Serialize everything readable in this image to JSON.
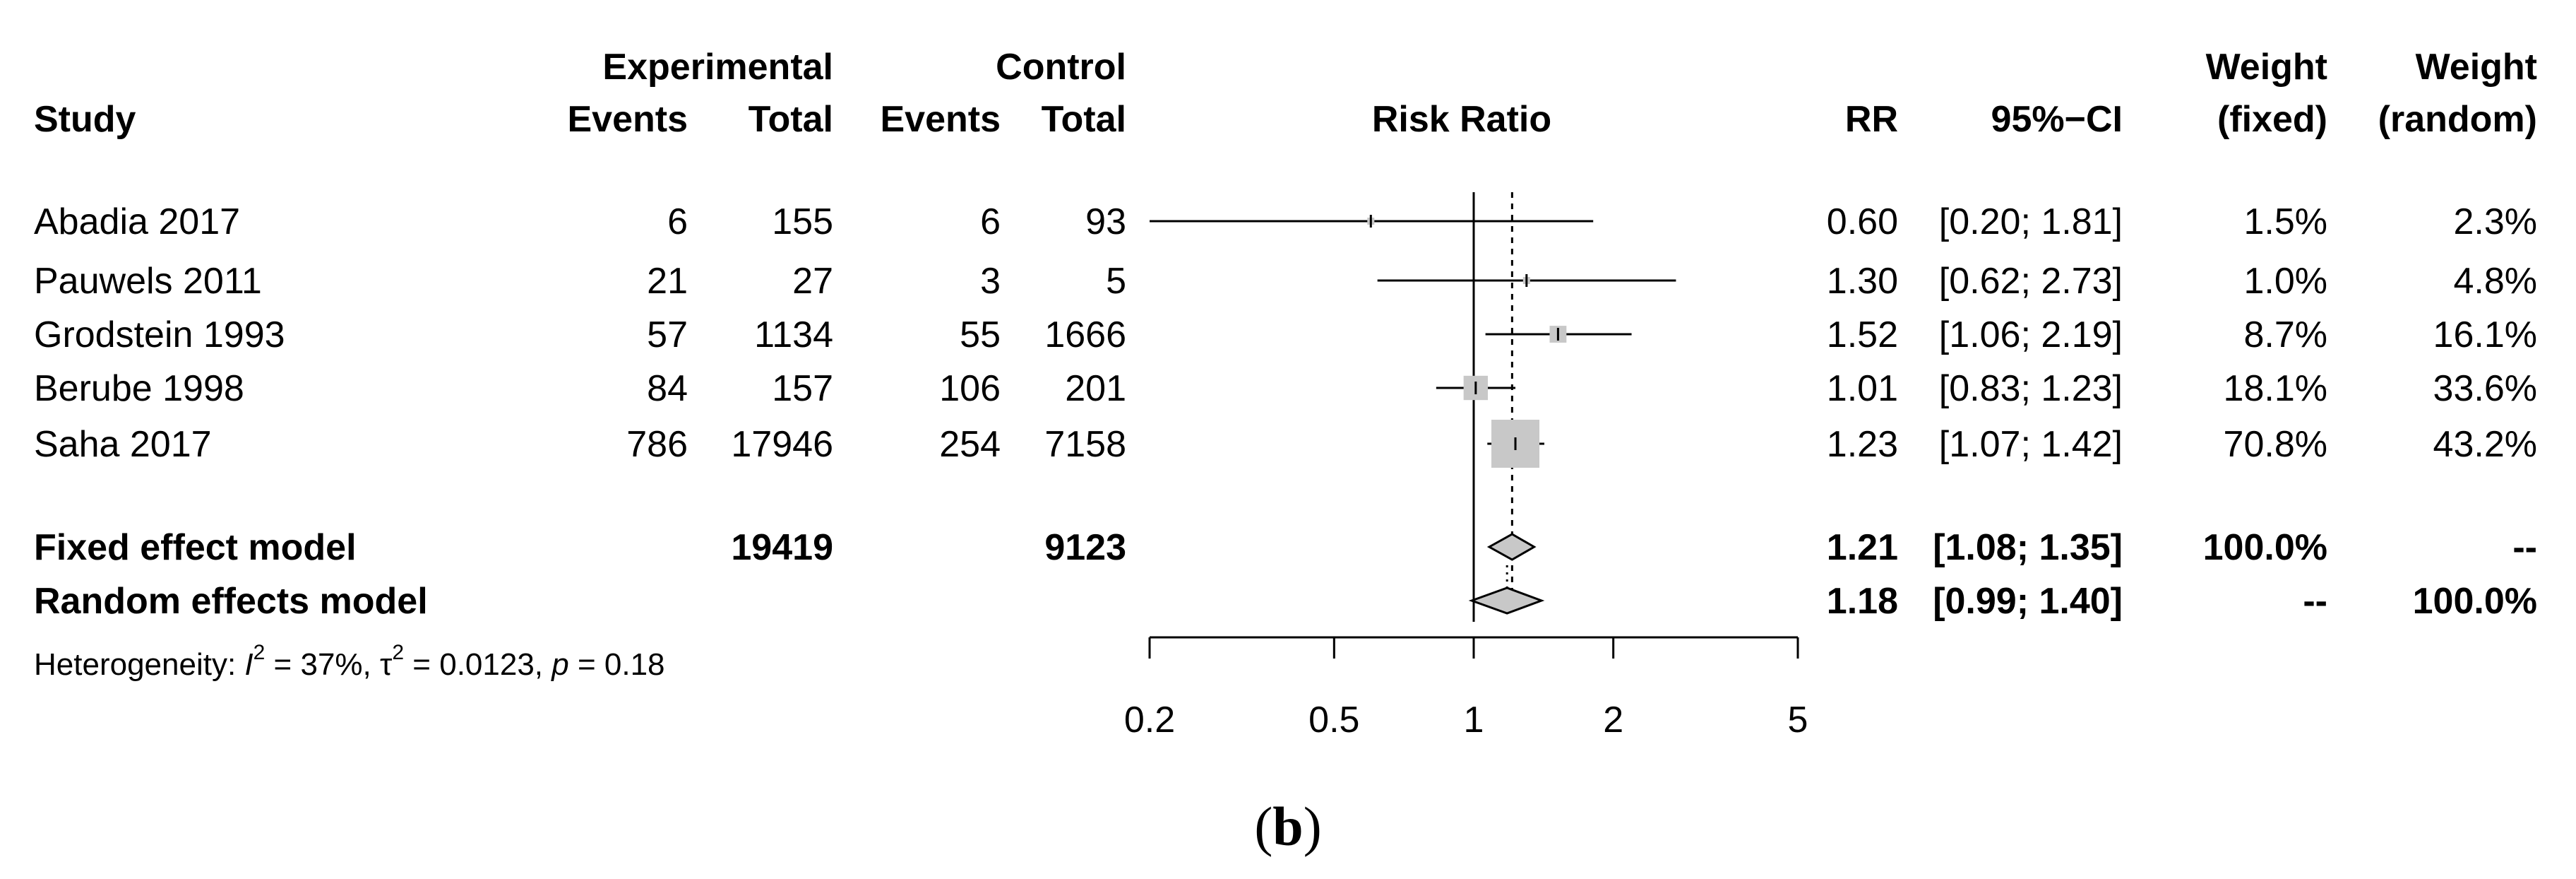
{
  "chart_data": {
    "type": "forest",
    "title": "",
    "xlabel": "Risk Ratio",
    "scale": "log",
    "xlim": [
      0.2,
      5
    ],
    "ticks": [
      0.2,
      0.5,
      1,
      2,
      5
    ],
    "tick_labels": [
      "0.2",
      "0.5",
      "1",
      "2",
      "5"
    ],
    "headers": {
      "study": "Study",
      "experimental": "Experimental",
      "control": "Control",
      "events": "Events",
      "total": "Total",
      "axis_title": "Risk Ratio",
      "rr": "RR",
      "ci": "95%−CI",
      "weight": "Weight",
      "fixed": "(fixed)",
      "random": "(random)"
    },
    "studies": [
      {
        "name": "Abadia 2017",
        "exp_events": "6",
        "exp_total": "155",
        "ctl_events": "6",
        "ctl_total": "93",
        "rr": 0.6,
        "lower": 0.2,
        "upper": 1.81,
        "rr_text": "0.60",
        "ci_text": "[0.20; 1.81]",
        "w_fixed": "1.5%",
        "w_random": "2.3%",
        "weight": 1.5
      },
      {
        "name": "Pauwels 2011",
        "exp_events": "21",
        "exp_total": "27",
        "ctl_events": "3",
        "ctl_total": "5",
        "rr": 1.3,
        "lower": 0.62,
        "upper": 2.73,
        "rr_text": "1.30",
        "ci_text": "[0.62; 2.73]",
        "w_fixed": "1.0%",
        "w_random": "4.8%",
        "weight": 1.0
      },
      {
        "name": "Grodstein 1993",
        "exp_events": "57",
        "exp_total": "1134",
        "ctl_events": "55",
        "ctl_total": "1666",
        "rr": 1.52,
        "lower": 1.06,
        "upper": 2.19,
        "rr_text": "1.52",
        "ci_text": "[1.06; 2.19]",
        "w_fixed": "8.7%",
        "w_random": "16.1%",
        "weight": 8.7
      },
      {
        "name": "Berube 1998",
        "exp_events": "84",
        "exp_total": "157",
        "ctl_events": "106",
        "ctl_total": "201",
        "rr": 1.01,
        "lower": 0.83,
        "upper": 1.23,
        "rr_text": "1.01",
        "ci_text": "[0.83; 1.23]",
        "w_fixed": "18.1%",
        "w_random": "33.6%",
        "weight": 18.1
      },
      {
        "name": "Saha 2017",
        "exp_events": "786",
        "exp_total": "17946",
        "ctl_events": "254",
        "ctl_total": "7158",
        "rr": 1.23,
        "lower": 1.07,
        "upper": 1.42,
        "rr_text": "1.23",
        "ci_text": "[1.07; 1.42]",
        "w_fixed": "70.8%",
        "w_random": "43.2%",
        "weight": 70.8
      }
    ],
    "pooled": [
      {
        "name": "Fixed effect model",
        "exp_total": "19419",
        "ctl_total": "9123",
        "rr": 1.21,
        "lower": 1.08,
        "upper": 1.35,
        "rr_text": "1.21",
        "ci_text": "[1.08; 1.35]",
        "w_fixed": "100.0%",
        "w_random": "--"
      },
      {
        "name": "Random effects model",
        "exp_total": "",
        "ctl_total": "",
        "rr": 1.18,
        "lower": 0.99,
        "upper": 1.4,
        "rr_text": "1.18",
        "ci_text": "[0.99; 1.40]",
        "w_fixed": "--",
        "w_random": "100.0%"
      }
    ],
    "heterogeneity": {
      "prefix": "Heterogeneity: ",
      "i2_symbol": "I",
      "i2_value": " = 37%, ",
      "tau2_symbol": "τ",
      "tau2_value": " = 0.0123, ",
      "p_symbol": "p",
      "p_value": " = 0.18",
      "sup": "2"
    }
  },
  "caption": {
    "open": "(",
    "letter": "b",
    "close": ")"
  }
}
